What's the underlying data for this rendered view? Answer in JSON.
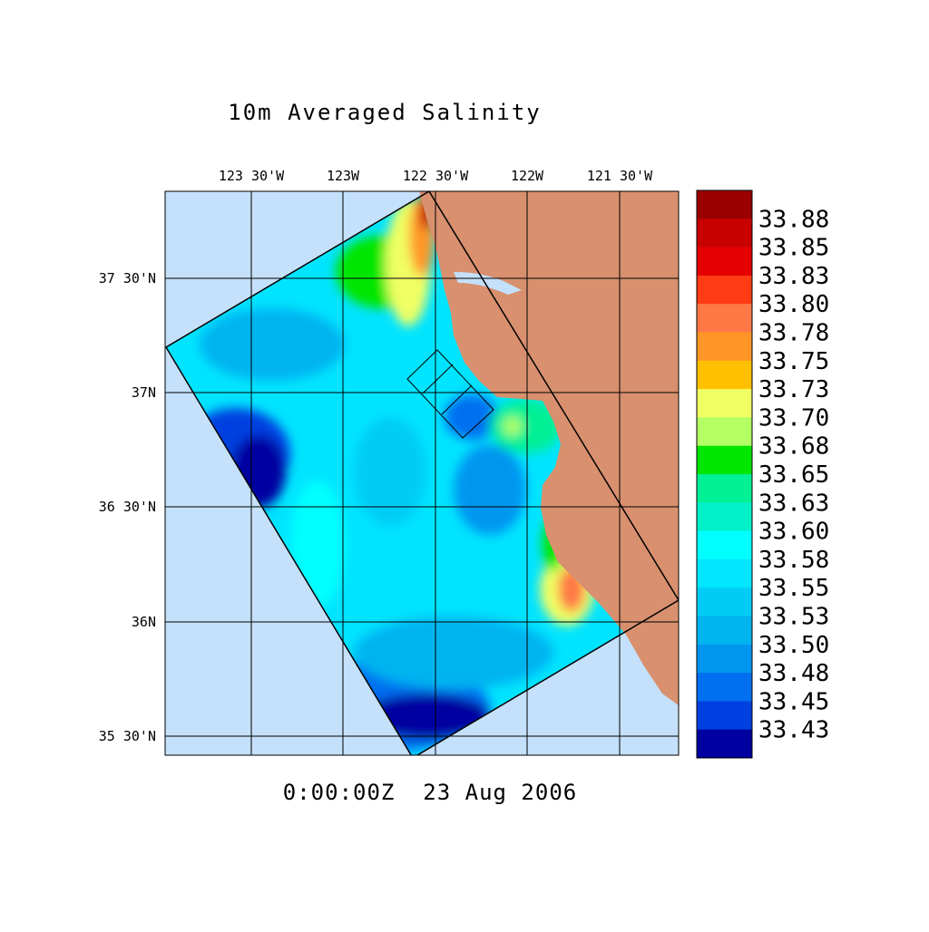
{
  "title": "10m Averaged Salinity",
  "longitude_labels": [
    "123 30'W",
    "123W",
    "122 30'W",
    "122W",
    "121 30'W"
  ],
  "latitude_labels": [
    "37 30'N",
    "37N",
    "36 30'N",
    "36N",
    "35 30'N"
  ],
  "colorbar": {
    "labels": [
      "33.88",
      "33.85",
      "33.83",
      "33.80",
      "33.78",
      "33.75",
      "33.73",
      "33.70",
      "33.68",
      "33.65",
      "33.63",
      "33.60",
      "33.58",
      "33.55",
      "33.53",
      "33.50",
      "33.48",
      "33.45",
      "33.43"
    ],
    "colors": [
      "#9a0000",
      "#c80000",
      "#e40000",
      "#ff3c14",
      "#ff7846",
      "#ff9628",
      "#ffc000",
      "#f0ff64",
      "#b4ff64",
      "#00e600",
      "#00f096",
      "#00f0c8",
      "#00ffff",
      "#00e6ff",
      "#00ccf5",
      "#00b4f0",
      "#0096f0",
      "#0070f0",
      "#0040e0",
      "#0000a0"
    ]
  },
  "timestamp": "0:00:00Z  23 Aug 2006"
}
